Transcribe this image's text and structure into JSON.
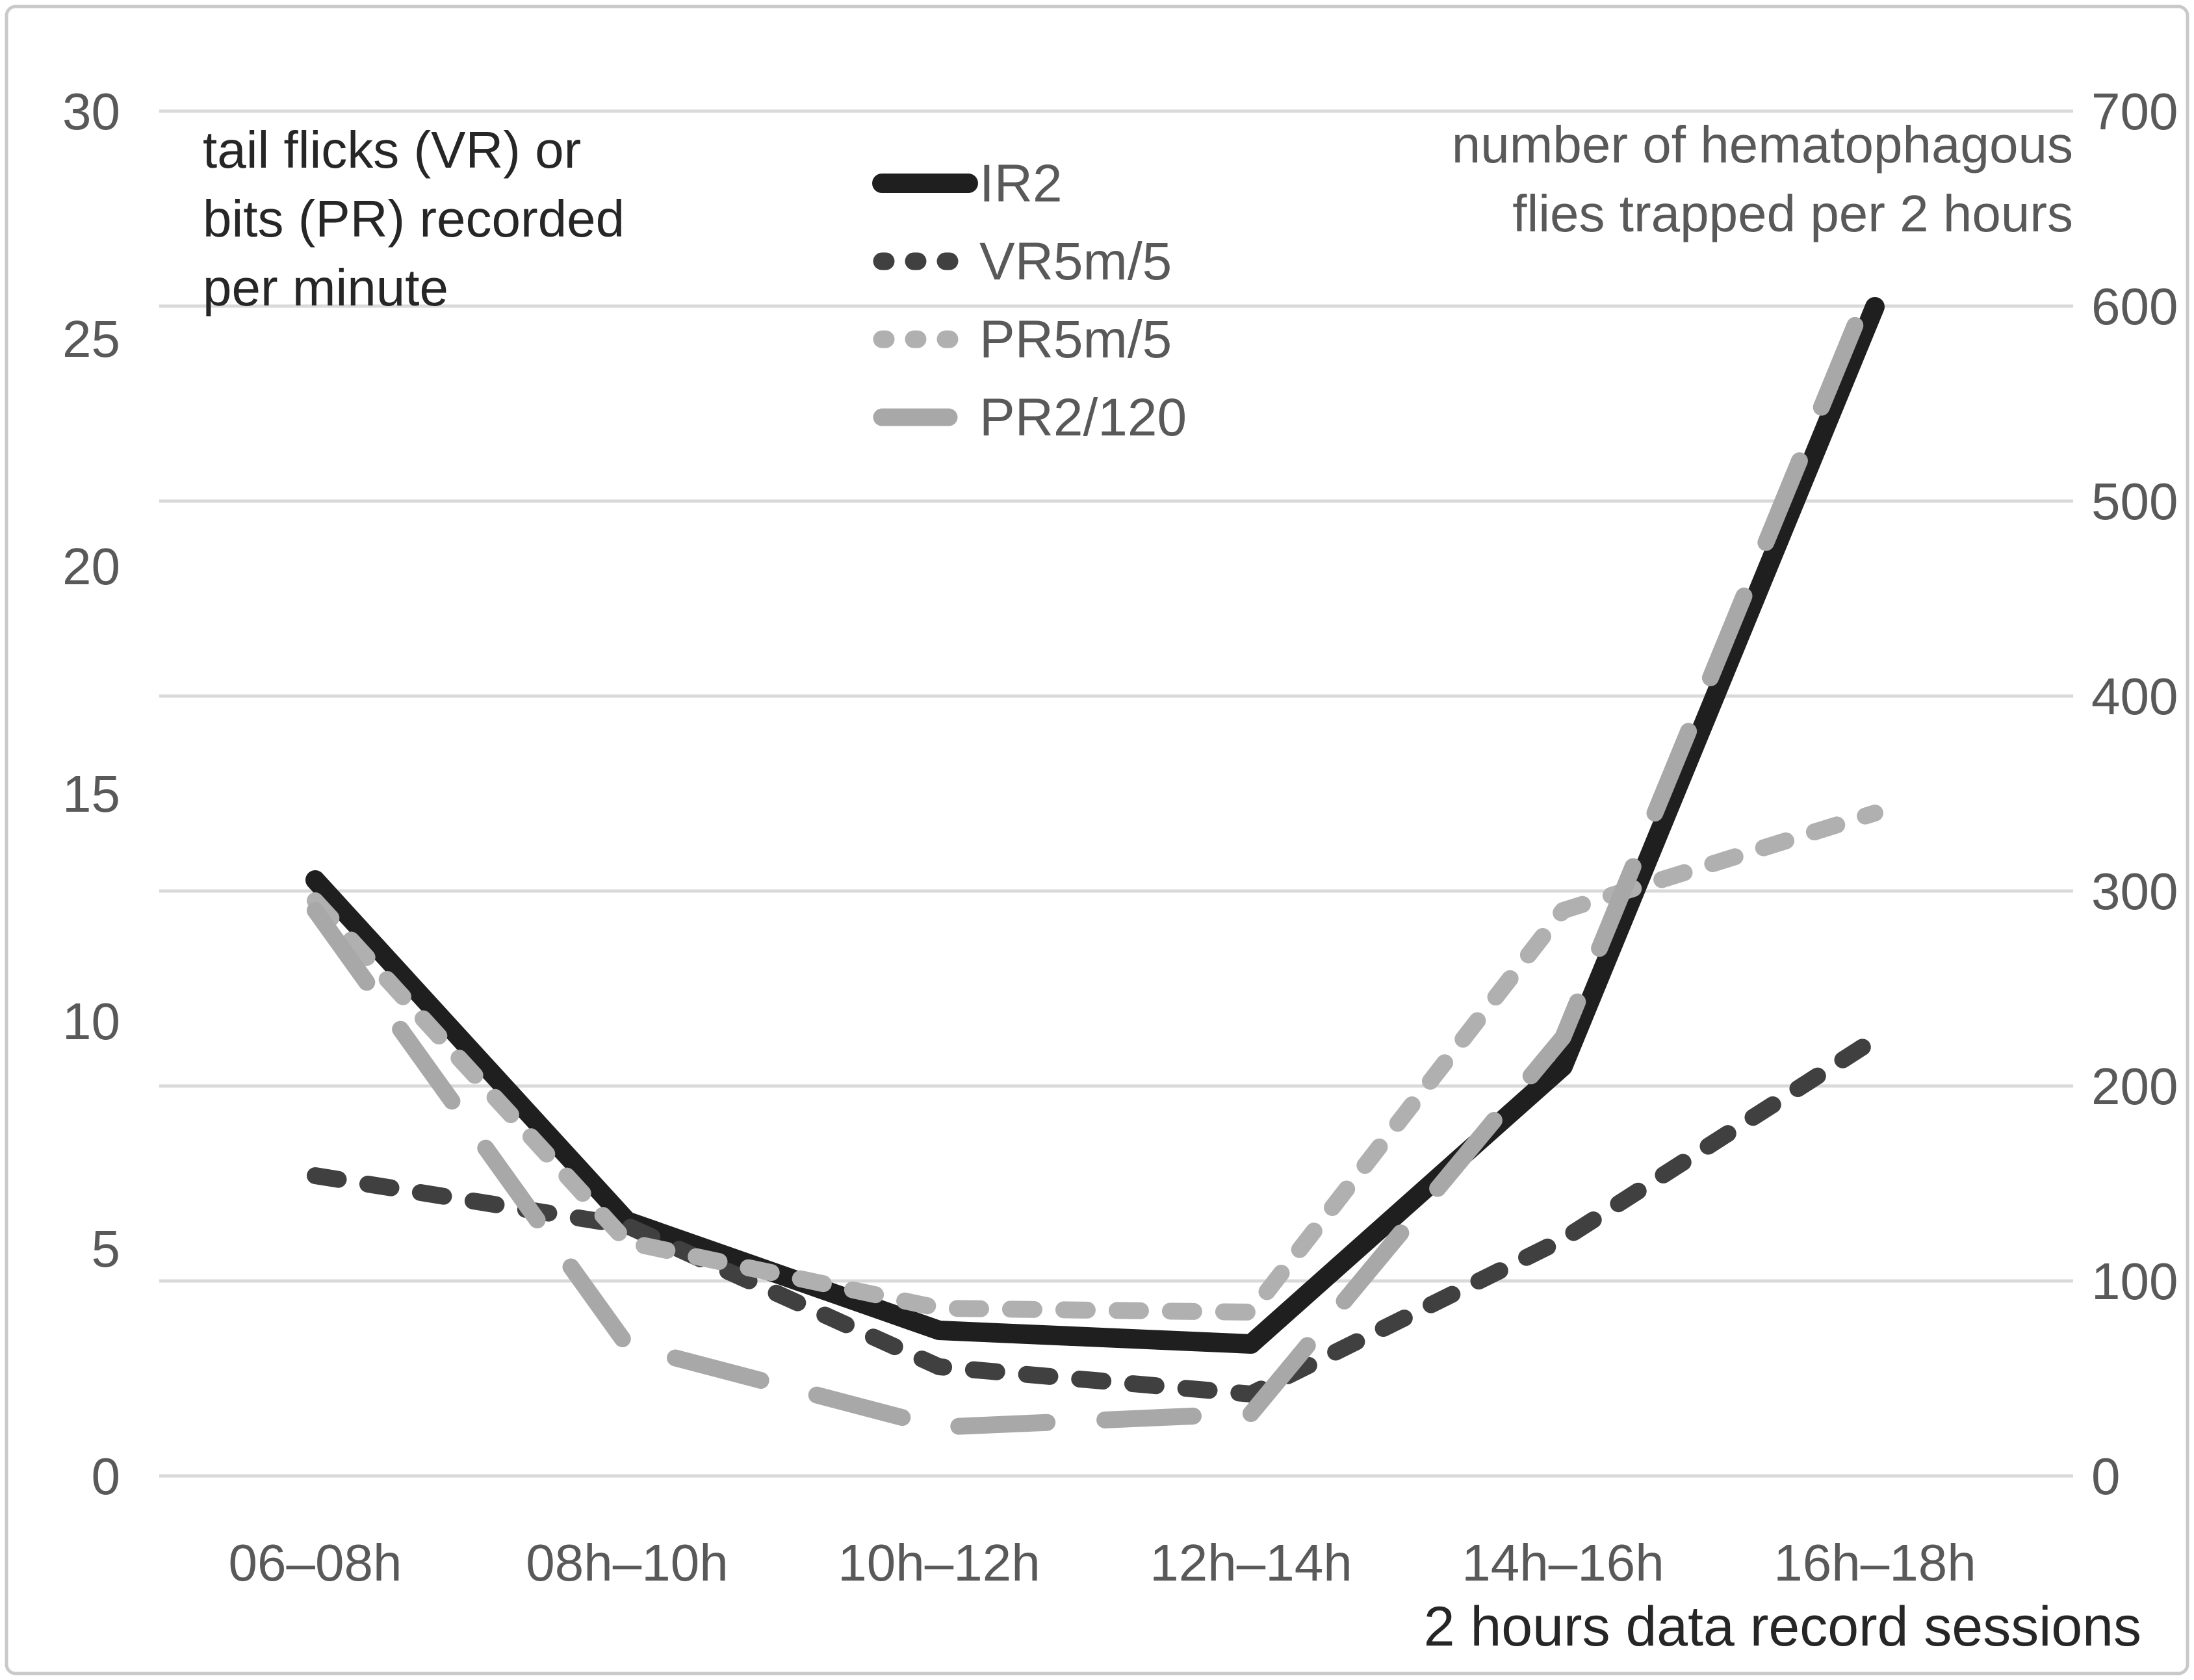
{
  "chart_data": {
    "type": "line",
    "categories": [
      "06–08h",
      "08h–10h",
      "10h–12h",
      "12h–14h",
      "14h–16h",
      "16h–18h"
    ],
    "series": [
      {
        "name": "IR2",
        "axis": "left",
        "style": "solid",
        "color": "#1f1f1f",
        "values": [
          13.1,
          5.6,
          3.2,
          2.9,
          9.0,
          25.7
        ]
      },
      {
        "name": "VR5m/5",
        "axis": "left",
        "style": "dash",
        "color": "#404040",
        "values": [
          6.6,
          5.5,
          2.4,
          1.8,
          5.2,
          9.6
        ]
      },
      {
        "name": "PR5m/5",
        "axis": "right",
        "style": "dash",
        "color": "#b0b0b0",
        "values": [
          295,
          120,
          86,
          84,
          290,
          340
        ]
      },
      {
        "name": "PR2/120",
        "axis": "right",
        "style": "long-dash",
        "color": "#a8a8a8",
        "values": [
          290,
          67,
          25,
          32,
          225,
          615
        ]
      }
    ],
    "left_axis": {
      "title": "tail flicks (VR) or bits (PR) recorded per minute",
      "title_lines": [
        "tail flicks (VR) or",
        "bits (PR) recorded",
        "per minute"
      ],
      "ticks": [
        30,
        25,
        20,
        15,
        10,
        5,
        0
      ],
      "range": [
        0,
        30
      ]
    },
    "right_axis": {
      "title": "number of hematophagous flies trapped per 2 hours",
      "title_lines": [
        "number of hematophagous",
        "flies trapped per 2 hours"
      ],
      "ticks": [
        700,
        600,
        500,
        400,
        300,
        200,
        100,
        0
      ],
      "range": [
        0,
        700
      ]
    },
    "x_axis": {
      "title": "2 hours data record sessions"
    },
    "legend": {
      "position": "top-center",
      "entries": [
        "IR2",
        "VR5m/5",
        "PR5m/5",
        "PR2/120"
      ]
    },
    "grid": true,
    "gridline_color": "#d9d9d9",
    "tick_label_color": "#595959",
    "axis_title_color": "#262626",
    "right_title_color": "#595959",
    "legend_text_color": "#595959",
    "frame_color": "#c9c9c9",
    "background_color": "#ffffff"
  }
}
